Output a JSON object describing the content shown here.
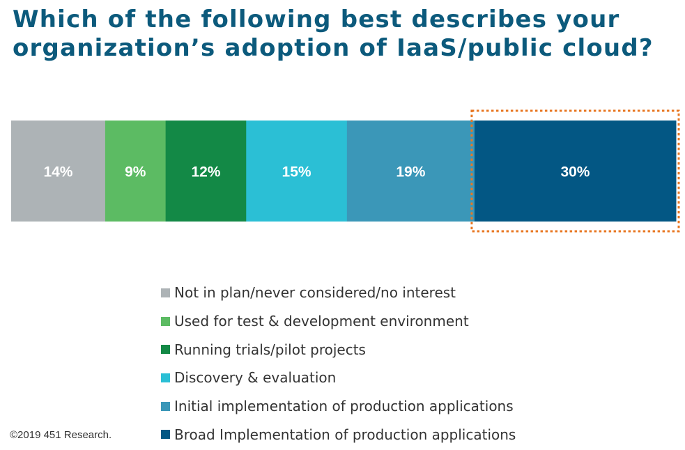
{
  "title": "Which of the following best describes your organization’s adoption of IaaS/public cloud?",
  "copyright": "©2019 451 Research.",
  "chart_data": {
    "type": "bar",
    "orientation": "horizontal-stacked",
    "title": "Which of the following best describes your organization’s adoption of IaaS/public cloud?",
    "unit": "%",
    "highlighted_series": "Broad Implementation of production applications",
    "highlight_color": "#e87722",
    "legend_position": "bottom",
    "grid": false,
    "series": [
      {
        "name": "Not in plan/never considered/no interest",
        "value": 14,
        "label": "14%",
        "color": "#adb3b6"
      },
      {
        "name": "Used for test & development environment",
        "value": 9,
        "label": "9%",
        "color": "#5cbb63"
      },
      {
        "name": "Running trials/pilot projects",
        "value": 12,
        "label": "12%",
        "color": "#138946"
      },
      {
        "name": "Discovery & evaluation",
        "value": 15,
        "label": "15%",
        "color": "#2bbfd5"
      },
      {
        "name": "Initial implementation of production applications",
        "value": 19,
        "label": "19%",
        "color": "#3b97b8"
      },
      {
        "name": "Broad Implementation of production applications",
        "value": 30,
        "label": "30%",
        "color": "#035784"
      }
    ]
  }
}
